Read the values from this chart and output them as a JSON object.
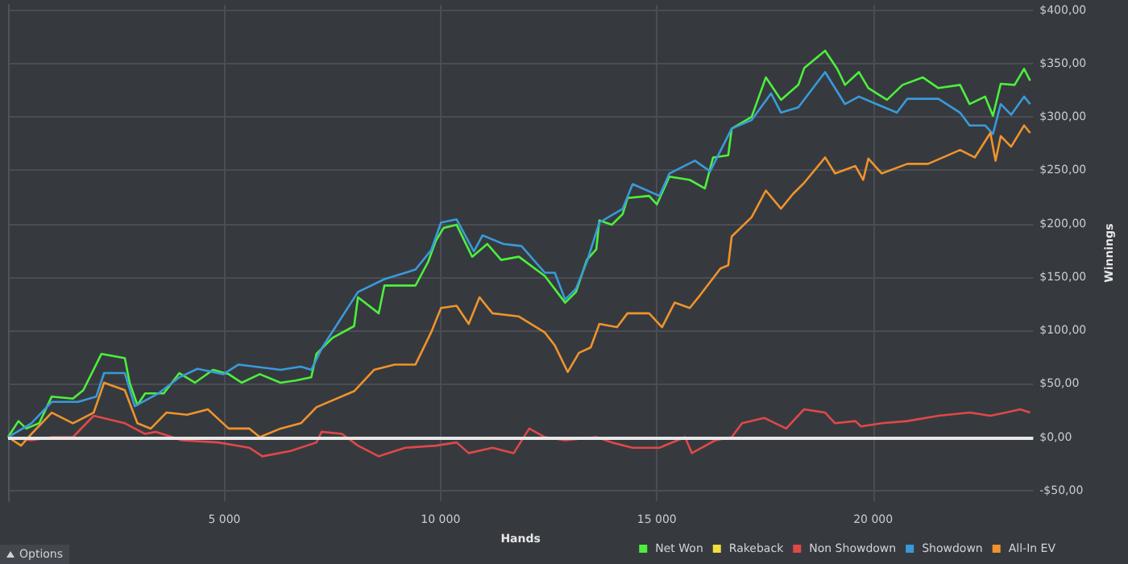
{
  "chart_data": {
    "type": "line",
    "xlabel": "Hands",
    "ylabel": "Winnings",
    "xlim": [
      0,
      23700
    ],
    "ylim": [
      -60,
      405
    ],
    "xticks": [
      {
        "value": 5000,
        "label": "5 000"
      },
      {
        "value": 10000,
        "label": "10 000"
      },
      {
        "value": 15000,
        "label": "15 000"
      },
      {
        "value": 20000,
        "label": "20 000"
      }
    ],
    "yticks": [
      {
        "value": -50,
        "label": "-$50,00"
      },
      {
        "value": 0,
        "label": "$0,00"
      },
      {
        "value": 50,
        "label": "$50,00"
      },
      {
        "value": 100,
        "label": "$100,00"
      },
      {
        "value": 150,
        "label": "$150,00"
      },
      {
        "value": 200,
        "label": "$200,00"
      },
      {
        "value": 250,
        "label": "$250,00"
      },
      {
        "value": 300,
        "label": "$300,00"
      },
      {
        "value": 350,
        "label": "$350,00"
      },
      {
        "value": 400,
        "label": "$400,00"
      }
    ],
    "grid": true,
    "legend": "bottom",
    "marker": "none",
    "line_style": "solid",
    "ref_lines": [
      {
        "axis": "y",
        "value": 0,
        "label": null,
        "color": "#e8e8e8"
      }
    ],
    "annotations": [
      "Options"
    ],
    "series": [
      {
        "name": "Net Won",
        "color": "#4cf03c",
        "x": [
          0,
          240,
          420,
          720,
          1010,
          1500,
          1740,
          2160,
          2700,
          2810,
          2990,
          3170,
          3600,
          3960,
          4320,
          4740,
          5100,
          5400,
          5820,
          6300,
          6650,
          7010,
          7130,
          7500,
          8000,
          8090,
          8570,
          8700,
          9420,
          9710,
          9890,
          10070,
          10370,
          10730,
          11080,
          11400,
          11810,
          12410,
          12880,
          13130,
          13380,
          13600,
          13670,
          13960,
          14210,
          14320,
          14820,
          15000,
          15290,
          15760,
          16110,
          16300,
          16650,
          16730,
          17190,
          17520,
          17870,
          18270,
          18410,
          18890,
          19170,
          19350,
          19670,
          19890,
          20320,
          20680,
          21150,
          21510,
          22010,
          22230,
          22590,
          22770,
          22950,
          23270,
          23490,
          23630
        ],
        "values": [
          0,
          15,
          8,
          13,
          38,
          36,
          44,
          78,
          74,
          51,
          30,
          41,
          41,
          60,
          51,
          63,
          59,
          51,
          59,
          51,
          53,
          56,
          78,
          93,
          104,
          131,
          116,
          142,
          142,
          164,
          184,
          196,
          199,
          169,
          181,
          166,
          169,
          151,
          126,
          136,
          166,
          176,
          203,
          199,
          209,
          224,
          226,
          218,
          244,
          241,
          233,
          262,
          264,
          289,
          300,
          337,
          316,
          330,
          346,
          362,
          345,
          330,
          342,
          327,
          316,
          330,
          337,
          327,
          330,
          312,
          319,
          301,
          331,
          330,
          345,
          334
        ]
      },
      {
        "name": "Rakeback",
        "color": "#f0e040",
        "values": [
          null
        ]
      },
      {
        "name": "Non Showdown",
        "color": "#e04848",
        "x": [
          0,
          540,
          1010,
          1500,
          1980,
          2700,
          3170,
          3420,
          4020,
          4860,
          5580,
          5880,
          6530,
          7130,
          7250,
          7720,
          8090,
          8570,
          9180,
          9890,
          10370,
          10650,
          11200,
          11690,
          12050,
          12410,
          12880,
          13600,
          13960,
          14440,
          15060,
          15650,
          15810,
          16350,
          16730,
          16970,
          17480,
          17990,
          18400,
          18890,
          19120,
          19590,
          19720,
          20200,
          20790,
          21510,
          22230,
          22710,
          23070,
          23400,
          23630
        ],
        "values": [
          0,
          -3,
          0,
          0,
          20,
          13,
          3,
          5,
          -3,
          -5,
          -10,
          -18,
          -13,
          -5,
          5,
          3,
          -8,
          -18,
          -10,
          -8,
          -5,
          -15,
          -10,
          -15,
          8,
          0,
          -3,
          0,
          -5,
          -10,
          -10,
          0,
          -15,
          -3,
          0,
          13,
          18,
          8,
          26,
          23,
          13,
          15,
          10,
          13,
          15,
          20,
          23,
          20,
          23,
          26,
          23
        ]
      },
      {
        "name": "Showdown",
        "color": "#3a9ad9",
        "x": [
          0,
          540,
          1010,
          1620,
          2040,
          2220,
          2700,
          2930,
          3480,
          3960,
          4380,
          4980,
          5330,
          6300,
          6770,
          7010,
          7250,
          8090,
          8700,
          9420,
          9780,
          10010,
          10370,
          10770,
          10970,
          11450,
          11870,
          12410,
          12640,
          12880,
          13130,
          13380,
          13670,
          14210,
          14440,
          15060,
          15290,
          15880,
          16230,
          16730,
          17190,
          17640,
          17870,
          18270,
          18890,
          19350,
          19670,
          20080,
          20550,
          20790,
          21510,
          22010,
          22230,
          22590,
          22770,
          22950,
          23190,
          23490,
          23630
        ],
        "values": [
          0,
          13,
          33,
          33,
          38,
          60,
          60,
          29,
          41,
          56,
          64,
          59,
          68,
          63,
          66,
          63,
          83,
          136,
          148,
          157,
          175,
          201,
          204,
          174,
          189,
          181,
          179,
          154,
          154,
          129,
          139,
          164,
          201,
          214,
          237,
          226,
          247,
          259,
          249,
          289,
          297,
          322,
          304,
          309,
          342,
          312,
          319,
          312,
          304,
          317,
          317,
          304,
          292,
          292,
          284,
          312,
          302,
          319,
          312
        ]
      },
      {
        "name": "All-In EV",
        "color": "#f0932b",
        "x": [
          0,
          300,
          540,
          1010,
          1500,
          1980,
          2220,
          2700,
          2990,
          3300,
          3660,
          4140,
          4620,
          5100,
          5580,
          5820,
          6300,
          6770,
          7130,
          8000,
          8460,
          8940,
          9420,
          9780,
          10010,
          10370,
          10650,
          10900,
          11200,
          11810,
          12410,
          12640,
          12940,
          13200,
          13470,
          13670,
          14080,
          14320,
          14820,
          15120,
          15410,
          15760,
          16000,
          16470,
          16650,
          16730,
          17190,
          17520,
          17870,
          18150,
          18400,
          18890,
          19120,
          19590,
          19770,
          19890,
          20200,
          20790,
          21270,
          22010,
          22350,
          22710,
          22830,
          22950,
          23190,
          23490,
          23630
        ],
        "values": [
          0,
          -8,
          3,
          23,
          13,
          23,
          51,
          44,
          13,
          8,
          23,
          21,
          26,
          8,
          8,
          0,
          8,
          13,
          28,
          43,
          63,
          68,
          68,
          98,
          121,
          123,
          106,
          131,
          116,
          113,
          98,
          86,
          61,
          79,
          84,
          106,
          103,
          116,
          116,
          103,
          126,
          121,
          133,
          158,
          161,
          188,
          206,
          231,
          214,
          228,
          238,
          262,
          247,
          254,
          241,
          261,
          247,
          256,
          256,
          269,
          262,
          285,
          259,
          282,
          272,
          292,
          285
        ]
      }
    ]
  }
}
